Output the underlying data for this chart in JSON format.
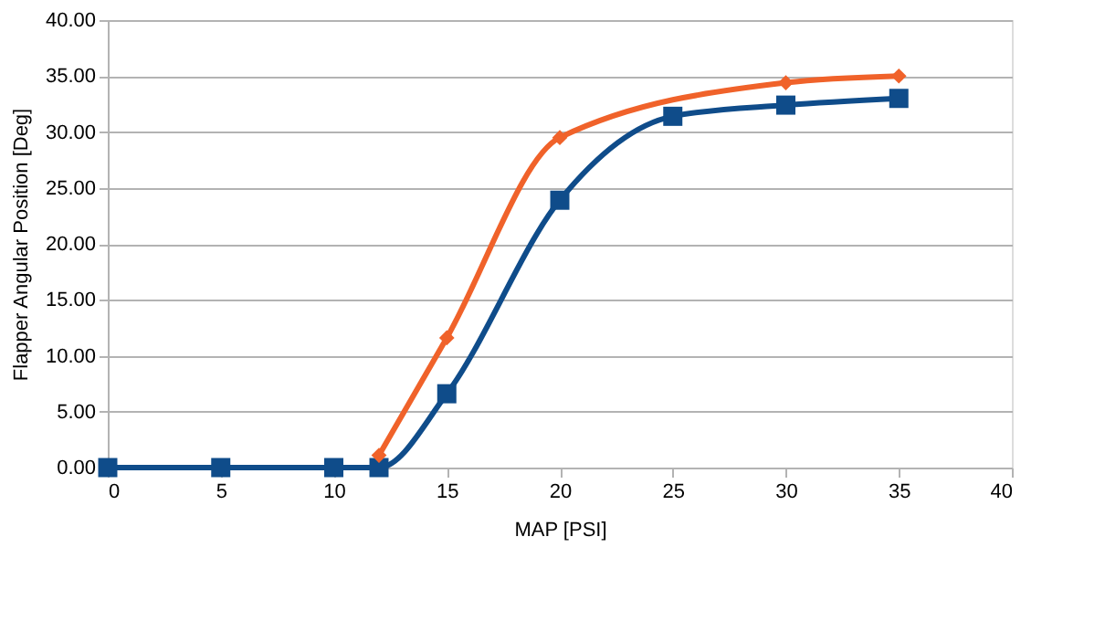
{
  "chart_data": {
    "type": "line",
    "xlabel": "MAP [PSI]",
    "ylabel": "Flapper Angular Position [Deg]",
    "series": [
      {
        "color": "#0f4c8a",
        "marker": "square",
        "x": [
          0,
          5,
          10,
          12,
          15,
          20,
          25,
          30,
          35
        ],
        "values": [
          0,
          0,
          0,
          0,
          6.6,
          23.9,
          31.4,
          32.4,
          33.0
        ]
      },
      {
        "color": "#f0622a",
        "marker": "diamond",
        "x": [
          12,
          15,
          20,
          30,
          35
        ],
        "values": [
          1.1,
          11.6,
          29.5,
          34.4,
          35.0
        ]
      }
    ],
    "xlim": [
      0,
      40
    ],
    "xticks": [
      0,
      5,
      10,
      15,
      20,
      25,
      30,
      35,
      40
    ],
    "ylim": [
      0,
      40
    ],
    "yticks": [
      {
        "value": 0,
        "label": "0.00"
      },
      {
        "value": 5,
        "label": "5.00"
      },
      {
        "value": 10,
        "label": "10.00"
      },
      {
        "value": 15,
        "label": "15.00"
      },
      {
        "value": 20,
        "label": "20.00"
      },
      {
        "value": 25,
        "label": "25.00"
      },
      {
        "value": 30,
        "label": "30.00"
      },
      {
        "value": 35,
        "label": "35.00"
      },
      {
        "value": 40,
        "label": "40.00"
      }
    ],
    "grid": "y",
    "line_style": "solid"
  }
}
